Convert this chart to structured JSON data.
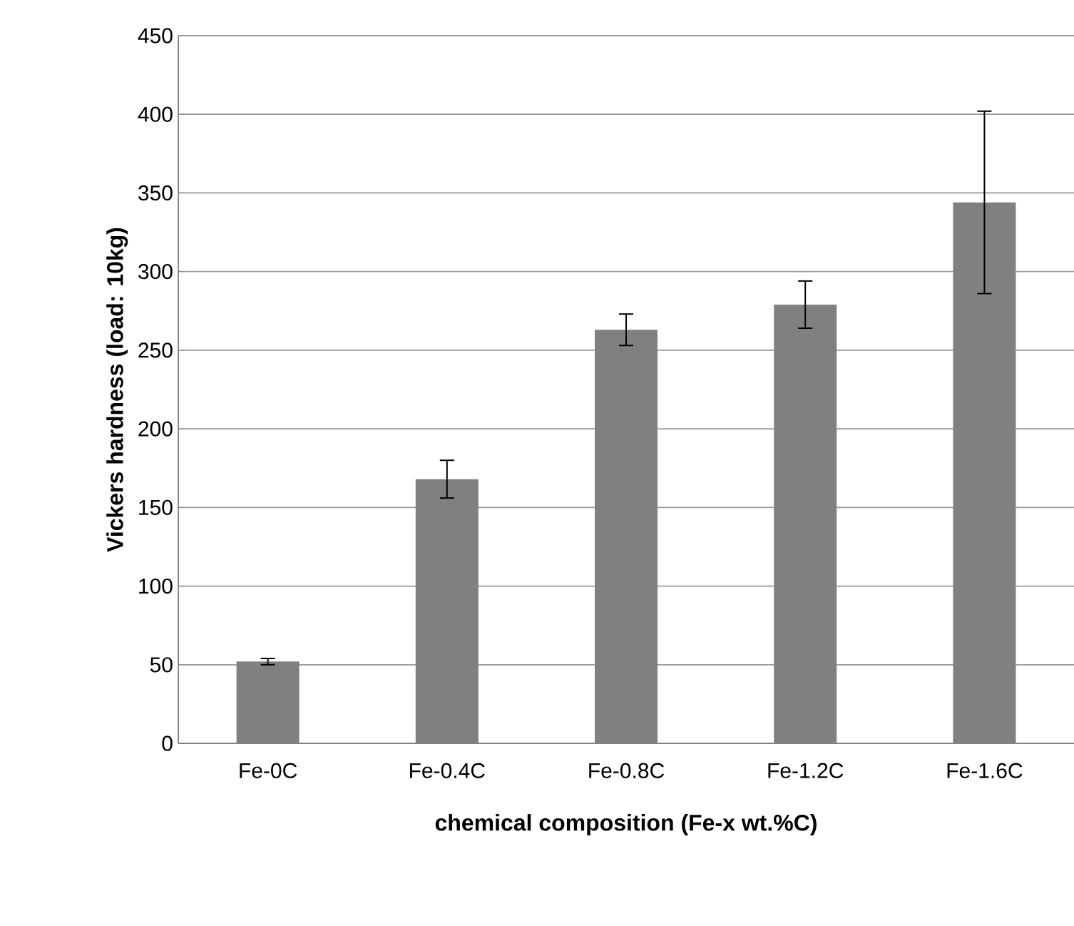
{
  "chart_data": {
    "type": "bar",
    "xlabel": "chemical composition (Fe-x wt.%C)",
    "ylabel": "Vickers hardness (load: 10kg)",
    "categories": [
      "Fe-0C",
      "Fe-0.4C",
      "Fe-0.8C",
      "Fe-1.2C",
      "Fe-1.6C"
    ],
    "values": [
      52,
      168,
      263,
      279,
      344
    ],
    "errors": [
      2,
      12,
      10,
      15,
      58
    ],
    "color": "#808080",
    "ylim": [
      0,
      450
    ],
    "yticks": [
      0,
      50,
      100,
      150,
      200,
      250,
      300,
      350,
      400,
      450
    ],
    "grid": "y"
  }
}
